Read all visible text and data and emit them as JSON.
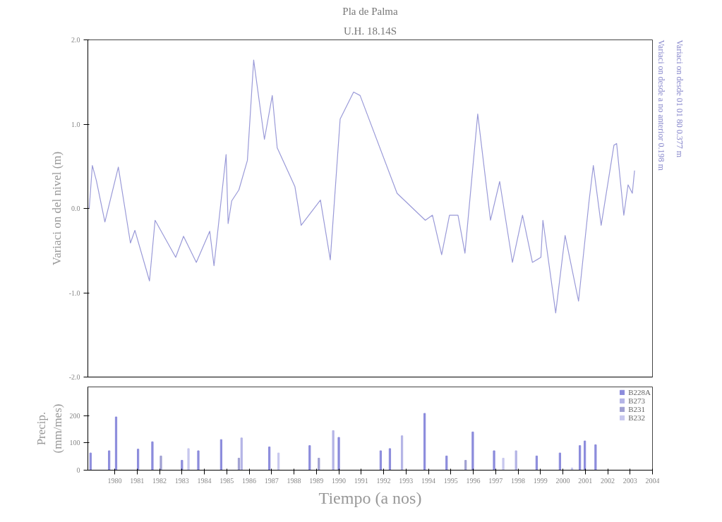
{
  "chart_data": [
    {
      "type": "line",
      "title": "U.H. 18.14S",
      "subtitle": "Pla de Palma",
      "ylabel": "Variaci on del nivel (m)",
      "xlim": [
        1978.8,
        2004
      ],
      "ylim": [
        -2,
        2
      ],
      "yticks": [
        {
          "value": 2,
          "label": "2.0"
        },
        {
          "value": 1,
          "label": "1.0"
        },
        {
          "value": 0,
          "label": "0.0"
        },
        {
          "value": -1,
          "label": "-1.0"
        },
        {
          "value": -2,
          "label": "-2.0"
        }
      ],
      "tick_labels": "y",
      "grid": false,
      "legend": false,
      "marker": "none",
      "line_style": "solid",
      "annotations": [
        "Variaci on desde a no anterior   0.198 m",
        "Variaci on desde 01 01 80   0.377 m"
      ],
      "series": [
        {
          "color": "#9a9ad8",
          "x": [
            1978.86,
            1979.0,
            1979.18,
            1979.56,
            1980.16,
            1980.7,
            1980.9,
            1981.55,
            1981.8,
            1982.72,
            1983.07,
            1983.64,
            1984.24,
            1984.43,
            1984.97,
            1985.06,
            1985.22,
            1985.54,
            1985.92,
            1986.2,
            1986.68,
            1987.03,
            1987.25,
            1988.04,
            1988.32,
            1989.18,
            1989.62,
            1990.06,
            1990.66,
            1990.95,
            1992.6,
            1993.86,
            1994.18,
            1994.59,
            1994.94,
            1995.32,
            1995.63,
            1996.2,
            1996.77,
            1997.18,
            1997.75,
            1998.2,
            1998.64,
            1999.02,
            1999.11,
            1999.68,
            2000.1,
            2000.7,
            2001.17,
            2001.36,
            2001.71,
            2002.28,
            2002.4,
            2002.72,
            2002.91,
            2003.1,
            2003.2
          ],
          "values": [
            0.0,
            0.51,
            0.33,
            -0.16,
            0.49,
            -0.41,
            -0.26,
            -0.86,
            -0.14,
            -0.58,
            -0.33,
            -0.64,
            -0.27,
            -0.68,
            0.64,
            -0.18,
            0.09,
            0.22,
            0.57,
            1.76,
            0.82,
            1.34,
            0.72,
            0.26,
            -0.2,
            0.1,
            -0.61,
            1.06,
            1.38,
            1.34,
            0.18,
            -0.14,
            -0.08,
            -0.55,
            -0.08,
            -0.08,
            -0.53,
            1.12,
            -0.14,
            0.32,
            -0.64,
            -0.08,
            -0.64,
            -0.58,
            -0.14,
            -1.24,
            -0.32,
            -1.1,
            0.09,
            0.51,
            -0.2,
            0.75,
            0.77,
            -0.08,
            0.28,
            0.18,
            0.45
          ]
        }
      ]
    },
    {
      "type": "bar",
      "xlabel": "Tiempo (a nos)",
      "ylabel": "Precip.\n(mm/mes)",
      "xlim": [
        1978.8,
        2004
      ],
      "ylim": [
        0,
        305
      ],
      "xticks": [
        1980,
        1981,
        1982,
        1983,
        1984,
        1985,
        1986,
        1987,
        1988,
        1989,
        1990,
        1991,
        1992,
        1993,
        1994,
        1995,
        1996,
        1997,
        1998,
        1999,
        2000,
        2001,
        2002,
        2003,
        2004
      ],
      "yticks": [
        0,
        100,
        200
      ],
      "grid": false,
      "legend": "top right",
      "series": [
        {
          "name": "B228A",
          "color": "#8c8cdc",
          "x": [
            1978.92,
            1979.75,
            1980.06,
            1981.04,
            1981.68,
            1983.0,
            1983.73,
            1984.75,
            1986.9,
            1988.7,
            1990.0,
            1991.87,
            1992.28,
            1993.83,
            1994.81,
            1995.98,
            1996.93,
            1998.83,
            1999.87,
            2000.76,
            2000.98,
            2001.46
          ],
          "values": [
            63,
            71,
            195,
            77,
            104,
            36,
            71,
            112,
            85,
            90,
            120,
            71,
            79,
            208,
            52,
            140,
            71,
            52,
            63,
            90,
            107,
            93
          ]
        },
        {
          "name": "B273",
          "color": "#b4b4e6",
          "x": [
            1985.66,
            1989.75,
            1992.82,
            1997.91
          ],
          "values": [
            118,
            145,
            126,
            71
          ]
        },
        {
          "name": "B231",
          "color": "#a0a0d2",
          "x": [
            1982.06,
            1985.54,
            1989.11,
            1995.66
          ],
          "values": [
            52,
            44,
            44,
            36
          ]
        },
        {
          "name": "B232",
          "color": "#c8c8ee",
          "x": [
            1983.29,
            1987.31,
            1997.34,
            2000.41
          ],
          "values": [
            79,
            63,
            44,
            8
          ]
        }
      ]
    }
  ]
}
